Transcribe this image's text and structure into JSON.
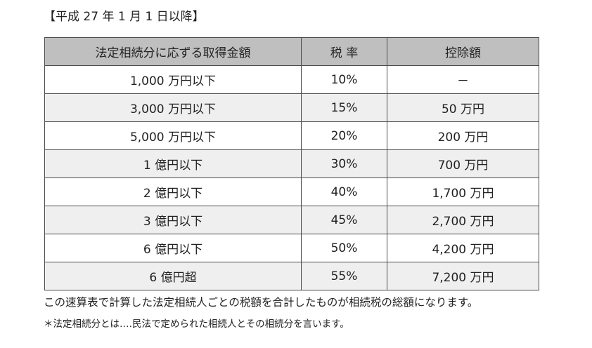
{
  "caption": "【平成 27 年 1 月 1 日以降】",
  "table": {
    "headers": [
      "法定相続分に応ずる取得金額",
      "税 率",
      "控除額"
    ],
    "rows": [
      {
        "amount": "1,000 万円以下",
        "rate": "10%",
        "deduction": "－"
      },
      {
        "amount": "3,000 万円以下",
        "rate": "15%",
        "deduction": "50 万円"
      },
      {
        "amount": "5,000 万円以下",
        "rate": "20%",
        "deduction": "200 万円"
      },
      {
        "amount": "1 億円以下",
        "rate": "30%",
        "deduction": "700 万円"
      },
      {
        "amount": "2 億円以下",
        "rate": "40%",
        "deduction": "1,700 万円"
      },
      {
        "amount": "3 億円以下",
        "rate": "45%",
        "deduction": "2,700 万円"
      },
      {
        "amount": "6 億円以下",
        "rate": "50%",
        "deduction": "4,200 万円"
      },
      {
        "amount": "6 億円超",
        "rate": "55%",
        "deduction": "7,200 万円"
      }
    ]
  },
  "notes": {
    "main": "この速算表で計算した法定相続人ごとの税額を合計したものが相続税の総額になります。",
    "sub": "＊法定相続分とは‥‥民法で定められた相続人とその相続分を言います。"
  }
}
